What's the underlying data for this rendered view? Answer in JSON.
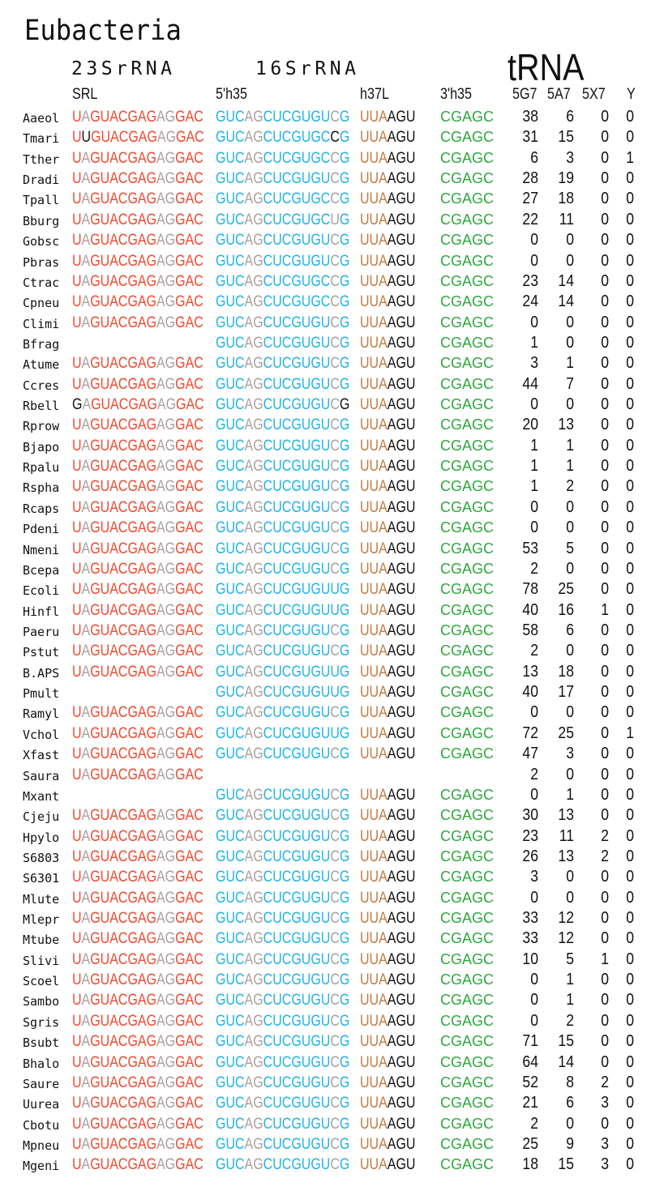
{
  "title": "Eubacteria",
  "groups": {
    "rrna23": "23SrRNA",
    "rrna16": "16SrRNA",
    "trna": "tRNA"
  },
  "columns": {
    "srl": "SRL",
    "h35_5": "5'h35",
    "h37l": "h37L",
    "h35_3": "3'h35",
    "g5g7": "5G7",
    "a5a7": "5A7",
    "x5x7": "5X7",
    "y": "Y"
  },
  "colors": {
    "red": "#f04a30",
    "gray": "#aaa0a0",
    "blue": "#1fb4e6",
    "brown": "#c07a40",
    "green": "#3cb44b",
    "black": "#111111"
  },
  "color_templates": {
    "srl": [
      "red",
      "gray",
      "red",
      "red",
      "red",
      "red",
      "red",
      "red",
      "red",
      "gray",
      "gray",
      "red",
      "red",
      "red"
    ],
    "h35_5": [
      "blue",
      "blue",
      "blue",
      "gray",
      "gray",
      "blue",
      "blue",
      "blue",
      "blue",
      "blue",
      "blue",
      "blue",
      "gray",
      "blue"
    ],
    "h37l": [
      "brown",
      "brown",
      "brown",
      "black",
      "black",
      "black"
    ],
    "h35_3": [
      "green",
      "green",
      "green",
      "green",
      "green"
    ]
  },
  "rows": [
    {
      "name": "Aaeol",
      "srl": "UAGUACGAGAGGAC",
      "h35_5": "GUCAGCUCGUGUCG",
      "h37l": "UUAAGU",
      "h35_3": "CGAGC",
      "v": [
        "38",
        "6",
        "0",
        "0"
      ]
    },
    {
      "name": "Tmari",
      "srl": "UUGUACGAGAGGAC",
      "srl_black": [
        1
      ],
      "h35_5": "GUCAGCUCGUGCCG",
      "h35_5_black": [
        12
      ],
      "h37l": "UUAAGU",
      "h35_3": "CGAGC",
      "v": [
        "31",
        "15",
        "0",
        "0"
      ]
    },
    {
      "name": "Tther",
      "srl": "UAGUACGAGAGGAC",
      "h35_5": "GUCAGCUCGUGCCG",
      "h37l": "UUAAGU",
      "h35_3": "CGAGC",
      "v": [
        "6",
        "3",
        "0",
        "1"
      ]
    },
    {
      "name": "Dradi",
      "srl": "UAGUACGAGAGGAC",
      "h35_5": "GUCAGCUCGUGUCG",
      "h37l": "UUAAGU",
      "h35_3": "CGAGC",
      "v": [
        "28",
        "19",
        "0",
        "0"
      ]
    },
    {
      "name": "Tpall",
      "srl": "UAGUACGAGAGGAC",
      "h35_5": "GUCAGCUCGUGCCG",
      "h37l": "UUAAGU",
      "h35_3": "CGAGC",
      "v": [
        "27",
        "18",
        "0",
        "0"
      ]
    },
    {
      "name": "Bburg",
      "srl": "UAGUACGAGAGGAC",
      "h35_5": "GUCAGCUCGUGCUG",
      "h37l": "UUAAGU",
      "h35_3": "CGAGC",
      "v": [
        "22",
        "11",
        "0",
        "0"
      ]
    },
    {
      "name": "Gobsc",
      "srl": "UAGUACGAGAGGAC",
      "h35_5": "GUCAGCUCGUGUCG",
      "h37l": "UUAAGU",
      "h35_3": "CGAGC",
      "v": [
        "0",
        "0",
        "0",
        "0"
      ]
    },
    {
      "name": "Pbras",
      "srl": "UAGUACGAGAGGAC",
      "h35_5": "GUCAGCUCGUGUCG",
      "h37l": "UUAAGU",
      "h35_3": "CGAGC",
      "v": [
        "0",
        "0",
        "0",
        "0"
      ]
    },
    {
      "name": "Ctrac",
      "srl": "UAGUACGAGAGGAC",
      "h35_5": "GUCAGCUCGUGCCG",
      "h37l": "UUAAGU",
      "h35_3": "CGAGC",
      "v": [
        "23",
        "14",
        "0",
        "0"
      ]
    },
    {
      "name": "Cpneu",
      "srl": "UAGUACGAGAGGAC",
      "h35_5": "GUCAGCUCGUGCCG",
      "h37l": "UUAAGU",
      "h35_3": "CGAGC",
      "v": [
        "24",
        "14",
        "0",
        "0"
      ]
    },
    {
      "name": "Climi",
      "srl": "UAGUACGAGAGGAC",
      "h35_5": "GUCAGCUCGUGUCG",
      "h37l": "UUAAGU",
      "h35_3": "CGAGC",
      "v": [
        "0",
        "0",
        "0",
        "0"
      ]
    },
    {
      "name": "Bfrag",
      "srl": "",
      "h35_5": "GUCAGCUCGUGUCG",
      "h37l": "UUAAGU",
      "h35_3": "CGAGC",
      "v": [
        "1",
        "0",
        "0",
        "0"
      ]
    },
    {
      "name": "Atume",
      "srl": "UAGUACGAGAGGAC",
      "h35_5": "GUCAGCUCGUGUCG",
      "h37l": "UUAAGU",
      "h35_3": "CGAGC",
      "v": [
        "3",
        "1",
        "0",
        "0"
      ]
    },
    {
      "name": "Ccres",
      "srl": "UAGUACGAGAGGAC",
      "h35_5": "GUCAGCUCGUGUCG",
      "h37l": "UUAAGU",
      "h35_3": "CGAGC",
      "v": [
        "44",
        "7",
        "0",
        "0"
      ]
    },
    {
      "name": "Rbell",
      "srl": "GAGUACGAGAGGAC",
      "srl_black": [
        0
      ],
      "h35_5": "GUCAGCUCGUGUCG",
      "h35_5_black": [
        13
      ],
      "h37l": "UUAAGU",
      "h35_3": "CGAGC",
      "v": [
        "0",
        "0",
        "0",
        "0"
      ]
    },
    {
      "name": "Rprow",
      "srl": "UAGUACGAGAGGAC",
      "h35_5": "GUCAGCUCGUGUCG",
      "h37l": "UUAAGU",
      "h35_3": "CGAGC",
      "v": [
        "20",
        "13",
        "0",
        "0"
      ]
    },
    {
      "name": "Bjapo",
      "srl": "UAGUACGAGAGGAC",
      "h35_5": "GUCAGCUCGUGUCG",
      "h37l": "UUAAGU",
      "h35_3": "CGAGC",
      "v": [
        "1",
        "1",
        "0",
        "0"
      ]
    },
    {
      "name": "Rpalu",
      "srl": "UAGUACGAGAGGAC",
      "h35_5": "GUCAGCUCGUGUCG",
      "h37l": "UUAAGU",
      "h35_3": "CGAGC",
      "v": [
        "1",
        "1",
        "0",
        "0"
      ]
    },
    {
      "name": "Rspha",
      "srl": "UAGUACGAGAGGAC",
      "h35_5": "GUCAGCUCGUGUCG",
      "h37l": "UUAAGU",
      "h35_3": "CGAGC",
      "v": [
        "1",
        "2",
        "0",
        "0"
      ]
    },
    {
      "name": "Rcaps",
      "srl": "UAGUACGAGAGGAC",
      "h35_5": "GUCAGCUCGUGUCG",
      "h37l": "UUAAGU",
      "h35_3": "CGAGC",
      "v": [
        "0",
        "0",
        "0",
        "0"
      ]
    },
    {
      "name": "Pdeni",
      "srl": "UAGUACGAGAGGAC",
      "h35_5": "GUCAGCUCGUGUCG",
      "h37l": "UUAAGU",
      "h35_3": "CGAGC",
      "v": [
        "0",
        "0",
        "0",
        "0"
      ]
    },
    {
      "name": "Nmeni",
      "srl": "UAGUACGAGAGGAC",
      "h35_5": "GUCAGCUCGUGUCG",
      "h37l": "UUAAGU",
      "h35_3": "CGAGC",
      "v": [
        "53",
        "5",
        "0",
        "0"
      ]
    },
    {
      "name": "Bcepa",
      "srl": "UAGUACGAGAGGAC",
      "h35_5": "GUCAGCUCGUGUCG",
      "h37l": "UUAAGU",
      "h35_3": "CGAGC",
      "v": [
        "2",
        "0",
        "0",
        "0"
      ]
    },
    {
      "name": "Ecoli",
      "srl": "UAGUACGAGAGGAC",
      "h35_5": "GUCAGCUCGUGUUG",
      "h35_5_blue": [
        12
      ],
      "h37l": "UUAAGU",
      "h35_3": "CGAGC",
      "v": [
        "78",
        "25",
        "0",
        "0"
      ]
    },
    {
      "name": "Hinfl",
      "srl": "UAGUACGAGAGGAC",
      "h35_5": "GUCAGCUCGUGUUG",
      "h35_5_blue": [
        12
      ],
      "h37l": "UUAAGU",
      "h35_3": "CGAGC",
      "v": [
        "40",
        "16",
        "1",
        "0"
      ]
    },
    {
      "name": "Paeru",
      "srl": "UAGUACGAGAGGAC",
      "h35_5": "GUCAGCUCGUGUCG",
      "h37l": "UUAAGU",
      "h35_3": "CGAGC",
      "v": [
        "58",
        "6",
        "0",
        "0"
      ]
    },
    {
      "name": "Pstut",
      "srl": "UAGUACGAGAGGAC",
      "h35_5": "GUCAGCUCGUGUCG",
      "h37l": "UUAAGU",
      "h35_3": "CGAGC",
      "v": [
        "2",
        "0",
        "0",
        "0"
      ]
    },
    {
      "name": "B.APS",
      "srl": "UAGUACGAGAGGAC",
      "h35_5": "GUCAGCUCGUGUUG",
      "h35_5_blue": [
        12
      ],
      "h37l": "UUAAGU",
      "h35_3": "CGAGC",
      "v": [
        "13",
        "18",
        "0",
        "0"
      ]
    },
    {
      "name": "Pmult",
      "srl": "",
      "h35_5": "GUCAGCUCGUGUUG",
      "h35_5_blue": [
        12
      ],
      "h37l": "UUAAGU",
      "h35_3": "CGAGC",
      "v": [
        "40",
        "17",
        "0",
        "0"
      ]
    },
    {
      "name": "Ramyl",
      "srl": "UAGUACGAGAGGAC",
      "h35_5": "GUCAGCUCGUGUCG",
      "h37l": "UUAAGU",
      "h35_3": "CGAGC",
      "v": [
        "0",
        "0",
        "0",
        "0"
      ]
    },
    {
      "name": "Vchol",
      "srl": "UAGUACGAGAGGAC",
      "h35_5": "GUCAGCUCGUGUUG",
      "h35_5_blue": [
        12
      ],
      "h37l": "UUAAGU",
      "h35_3": "CGAGC",
      "v": [
        "72",
        "25",
        "0",
        "1"
      ]
    },
    {
      "name": "Xfast",
      "srl": "UAGUACGAGAGGAC",
      "h35_5": "GUCAGCUCGUGUCG",
      "h37l": "UUAAGU",
      "h35_3": "CGAGC",
      "v": [
        "47",
        "3",
        "0",
        "0"
      ]
    },
    {
      "name": "Saura",
      "srl": "UAGUACGAGAGGAC",
      "h35_5": "",
      "h37l": "",
      "h35_3": "",
      "v": [
        "2",
        "0",
        "0",
        "0"
      ]
    },
    {
      "name": "Mxant",
      "srl": "",
      "h35_5": "GUCAGCUCGUGUCG",
      "h37l": "UUAAGU",
      "h35_3": "CGAGC",
      "v": [
        "0",
        "1",
        "0",
        "0"
      ]
    },
    {
      "name": "Cjeju",
      "srl": "UAGUACGAGAGGAC",
      "h35_5": "GUCAGCUCGUGUCG",
      "h37l": "UUAAGU",
      "h35_3": "CGAGC",
      "v": [
        "30",
        "13",
        "0",
        "0"
      ]
    },
    {
      "name": "Hpylo",
      "srl": "UAGUACGAGAGGAC",
      "h35_5": "GUCAGCUCGUGUCG",
      "h37l": "UUAAGU",
      "h35_3": "CGAGC",
      "v": [
        "23",
        "11",
        "2",
        "0"
      ]
    },
    {
      "name": "S6803",
      "srl": "UAGUACGAGAGGAC",
      "h35_5": "GUCAGCUCGUGUCG",
      "h37l": "UUAAGU",
      "h35_3": "CGAGC",
      "v": [
        "26",
        "13",
        "2",
        "0"
      ]
    },
    {
      "name": "S6301",
      "srl": "UAGUACGAGAGGAC",
      "h35_5": "GUCAGCUCGUGUCG",
      "h37l": "UUAAGU",
      "h35_3": "CGAGC",
      "v": [
        "3",
        "0",
        "0",
        "0"
      ]
    },
    {
      "name": "Mlute",
      "srl": "UAGUACGAGAGGAC",
      "h35_5": "GUCAGCUCGUGUCG",
      "h37l": "UUAAGU",
      "h35_3": "CGAGC",
      "v": [
        "0",
        "0",
        "0",
        "0"
      ]
    },
    {
      "name": "Mlepr",
      "srl": "UAGUACGAGAGGAC",
      "h35_5": "GUCAGCUCGUGUCG",
      "h37l": "UUAAGU",
      "h35_3": "CGAGC",
      "v": [
        "33",
        "12",
        "0",
        "0"
      ]
    },
    {
      "name": "Mtube",
      "srl": "UAGUACGAGAGGAC",
      "h35_5": "GUCAGCUCGUGUCG",
      "h37l": "UUAAGU",
      "h35_3": "CGAGC",
      "v": [
        "33",
        "12",
        "0",
        "0"
      ]
    },
    {
      "name": "Slivi",
      "srl": "UAGUACGAGAGGAC",
      "h35_5": "GUCAGCUCGUGUCG",
      "h37l": "UUAAGU",
      "h35_3": "CGAGC",
      "v": [
        "10",
        "5",
        "1",
        "0"
      ]
    },
    {
      "name": "Scoel",
      "srl": "UAGUACGAGAGGAC",
      "h35_5": "GUCAGCUCGUGUCG",
      "h37l": "UUAAGU",
      "h35_3": "CGAGC",
      "v": [
        "0",
        "1",
        "0",
        "0"
      ]
    },
    {
      "name": "Sambo",
      "srl": "UAGUACGAGAGGAC",
      "h35_5": "GUCAGCUCGUGUCG",
      "h37l": "UUAAGU",
      "h35_3": "CGAGC",
      "v": [
        "0",
        "1",
        "0",
        "0"
      ]
    },
    {
      "name": "Sgris",
      "srl": "UAGUACGAGAGGAC",
      "h35_5": "GUCAGCUCGUGUCG",
      "h37l": "UUAAGU",
      "h35_3": "CGAGC",
      "v": [
        "0",
        "2",
        "0",
        "0"
      ]
    },
    {
      "name": "Bsubt",
      "srl": "UAGUACGAGAGGAC",
      "h35_5": "GUCAGCUCGUGUCG",
      "h37l": "UUAAGU",
      "h35_3": "CGAGC",
      "v": [
        "71",
        "15",
        "0",
        "0"
      ]
    },
    {
      "name": "Bhalo",
      "srl": "UAGUACGAGAGGAC",
      "h35_5": "GUCAGCUCGUGUCG",
      "h37l": "UUAAGU",
      "h35_3": "CGAGC",
      "v": [
        "64",
        "14",
        "0",
        "0"
      ]
    },
    {
      "name": "Saure",
      "srl": "UAGUACGAGAGGAC",
      "h35_5": "GUCAGCUCGUGUCG",
      "h37l": "UUAAGU",
      "h35_3": "CGAGC",
      "v": [
        "52",
        "8",
        "2",
        "0"
      ]
    },
    {
      "name": "Uurea",
      "srl": "UAGUACGAGAGGAC",
      "h35_5": "GUCAGCUCGUGUCG",
      "h37l": "UUAAGU",
      "h35_3": "CGAGC",
      "v": [
        "21",
        "6",
        "3",
        "0"
      ]
    },
    {
      "name": "Cbotu",
      "srl": "UAGUACGAGAGGAC",
      "h35_5": "GUCAGCUCGUGUCG",
      "h37l": "UUAAGU",
      "h35_3": "CGAGC",
      "v": [
        "2",
        "0",
        "0",
        "0"
      ]
    },
    {
      "name": "Mpneu",
      "srl": "UAGUACGAGAGGAC",
      "h35_5": "GUCAGCUCGUGUCG",
      "h37l": "UUAAGU",
      "h35_3": "CGAGC",
      "v": [
        "25",
        "9",
        "3",
        "0"
      ]
    },
    {
      "name": "Mgeni",
      "srl": "UAGUACGAGAGGAC",
      "h35_5": "GUCAGCUCGUGUCG",
      "h37l": "UUAAGU",
      "h35_3": "CGAGC",
      "v": [
        "18",
        "15",
        "3",
        "0"
      ]
    }
  ]
}
